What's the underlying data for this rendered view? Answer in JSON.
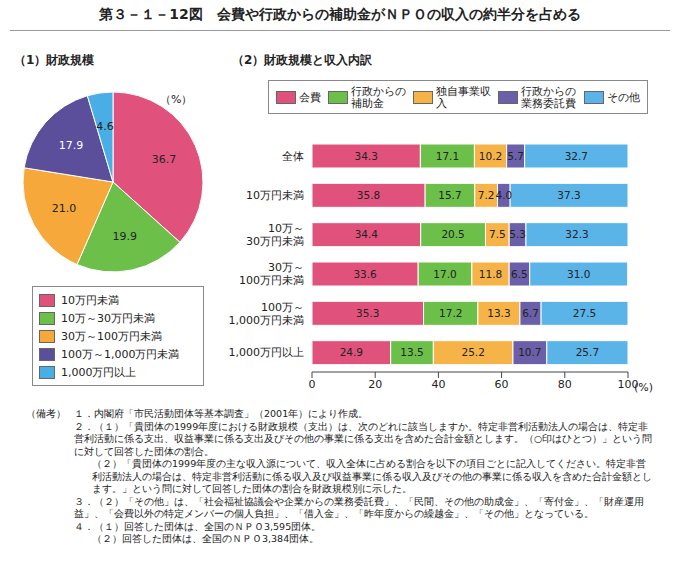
{
  "title": "第３－１－12図　会費や行政からの補助金がＮＰＯの収入の約半分を占める",
  "chart_data": [
    {
      "type": "pie",
      "subtitle": "（1）財政規模",
      "unit_label": "（%）",
      "categories": [
        "10万円未満",
        "10万～30万円未満",
        "30万～100万円未満",
        "100万～1,000万円未満",
        "1,000万円以上"
      ],
      "values": [
        36.7,
        19.9,
        21.0,
        17.9,
        4.6
      ],
      "value_labels": [
        "36.7",
        "19.9",
        "21.0",
        "17.9",
        "4.6"
      ],
      "colors": [
        "#e0527c",
        "#6cc04a",
        "#f6a83a",
        "#5b4f9c",
        "#4aaee6"
      ],
      "data_labels": true,
      "legend": "bottom"
    },
    {
      "type": "bar",
      "subtitle": "（2）財政規模と収入内訳",
      "orientation": "horizontal",
      "stacked": true,
      "data_labels": true,
      "grid": false,
      "legend": "top",
      "categories": [
        "全体",
        "10万円未満",
        "10万～30万円未満",
        "30万～100万円未満",
        "100万～1,000万円未満",
        "1,000万円以上"
      ],
      "xlabel": "(%)",
      "xlim": [
        0,
        100
      ],
      "xticks": [
        0,
        20,
        40,
        60,
        80,
        100
      ],
      "series": [
        {
          "name": "会費",
          "color": "#e0527c",
          "values": [
            34.3,
            35.8,
            34.4,
            33.6,
            35.3,
            24.9
          ],
          "value_labels": [
            "34.3",
            "35.8",
            "34.4",
            "33.6",
            "35.3",
            "24.9"
          ]
        },
        {
          "name": "行政からの補助金",
          "color": "#6cc04a",
          "values": [
            17.1,
            15.7,
            20.5,
            17.0,
            17.2,
            13.5
          ],
          "value_labels": [
            "17.1",
            "15.7",
            "20.5",
            "17.0",
            "17.2",
            "13.5"
          ]
        },
        {
          "name": "独自事業収入",
          "color": "#f6b448",
          "values": [
            10.2,
            7.2,
            7.5,
            11.8,
            13.3,
            25.2
          ],
          "value_labels": [
            "10.2",
            "7.2",
            "7.5",
            "11.8",
            "13.3",
            "25.2"
          ]
        },
        {
          "name": "行政からの業務委託費",
          "color": "#6a5fa8",
          "values": [
            5.7,
            4.0,
            5.3,
            6.5,
            6.7,
            10.7
          ],
          "value_labels": [
            "5.7",
            "4.0",
            "5.3",
            "6.5",
            "6.7",
            "10.7"
          ]
        },
        {
          "name": "その他",
          "color": "#5ab4e8",
          "values": [
            32.7,
            37.3,
            32.3,
            31.0,
            27.5,
            25.7
          ],
          "value_labels": [
            "32.7",
            "37.3",
            "32.3",
            "31.0",
            "27.5",
            "25.7"
          ]
        }
      ]
    }
  ],
  "notes": {
    "heading": "（備考）",
    "items": [
      "１．内閣府「市民活動団体等基本調査」（2001年）により作成。",
      "２．（１）「貴団体の1999年度における財政規模（支出）は、次のどれに該当しますか。特定非営利活動法人の場合は、特定非営利活動に係る支出、収益事業に係る支出及びその他の事業に係る支出を含めた合計金額とします。（○印はひとつ）」という問に対して回答した団体の割合。",
      "（２）「貴団体の1999年度の主な収入源について、収入全体に占める割合を以下の項目ごとに記入してください。特定非営利活動法人の場合は、特定非営利活動に係る収入及び収益事業に係る収入及びその他の事業に係る収入を含めた合計金額とします。」という問に対して回答した団体の割合を財政規模別に示した。",
      "３．（２）「その他」は、「社会福祉協議会や企業からの業務委託費」、「民間、その他の助成金」、「寄付金」、「財産運用益」、「会費以外の特定メンバーの個人負担」、「借入金」、「昨年度からの繰越金」、「その他」となっている。",
      "４．（１）回答した団体は、全国のＮＰＯ3,595団体。",
      "（２）回答した団体は、全国のＮＰＯ3,384団体。"
    ]
  }
}
